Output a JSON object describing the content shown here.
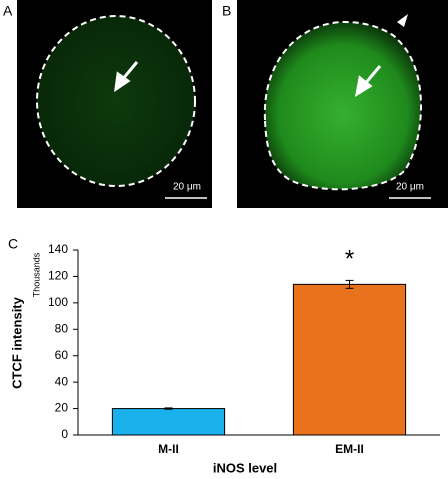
{
  "panels": [
    {
      "label": "A",
      "scale_bar_label": "20 μm"
    },
    {
      "label": "B",
      "scale_bar_label": "20 μm"
    }
  ],
  "chart_data": {
    "type": "bar",
    "panel_label": "C",
    "y_label": "CTCF intensity",
    "y_unit": "Thousands",
    "x_label": "iNOS level",
    "categories": [
      "M-II",
      "EM-II"
    ],
    "values": [
      20,
      114
    ],
    "errors": [
      0.5,
      3
    ],
    "colors": [
      "#1ab0ec",
      "#e8731c"
    ],
    "annotation": "*",
    "ylim": [
      0,
      140
    ],
    "yticks": [
      0,
      20,
      40,
      60,
      80,
      100,
      120,
      140
    ],
    "grid": false
  }
}
